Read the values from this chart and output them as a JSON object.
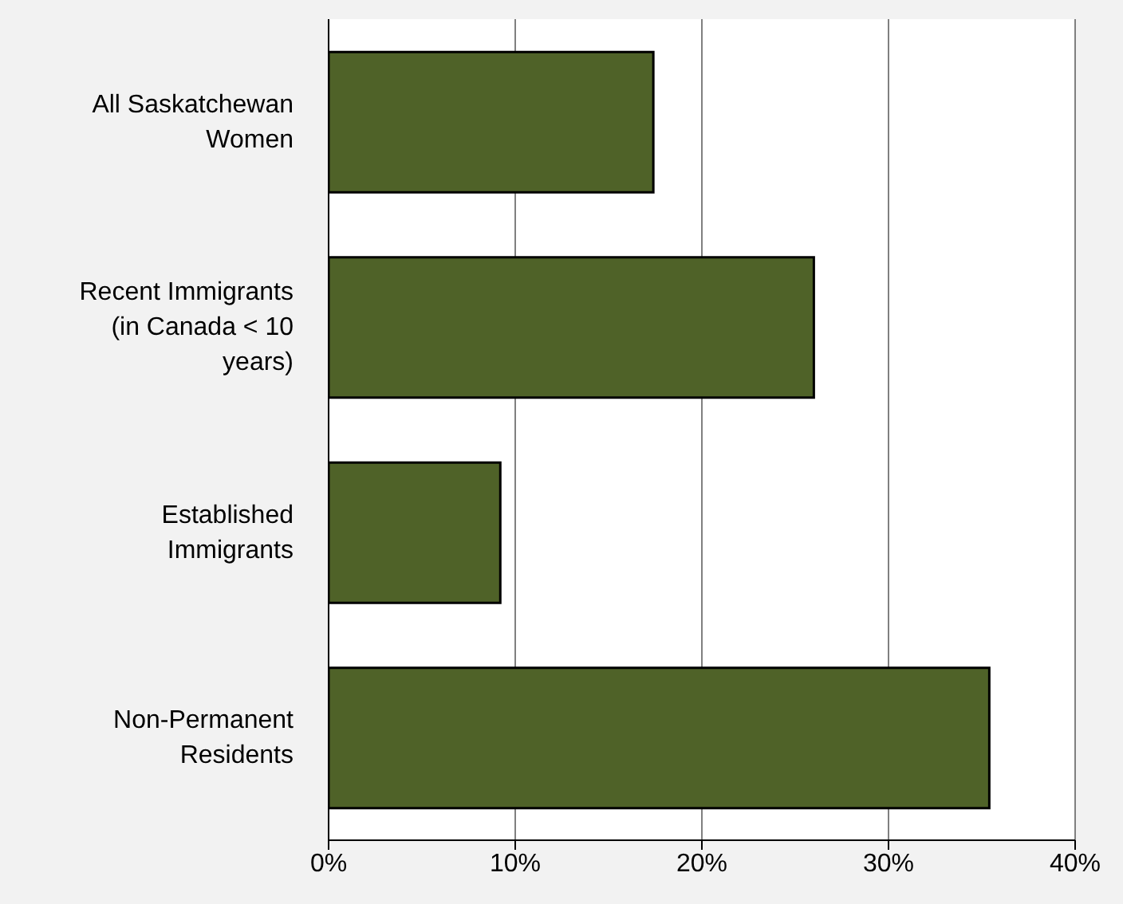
{
  "chart_data": {
    "type": "bar",
    "orientation": "horizontal",
    "categories": [
      "All Saskatchewan Women",
      "Recent Immigrants (in Canada < 10 years)",
      "Established Immigrants",
      "Non-Permanent Residents"
    ],
    "values": [
      17.4,
      26.0,
      9.2,
      35.4
    ],
    "color": "#4f6228",
    "xlim": [
      0,
      40
    ],
    "xticks": [
      {
        "value": 0,
        "label": "0%"
      },
      {
        "value": 10,
        "label": "10%"
      },
      {
        "value": 20,
        "label": "20%"
      },
      {
        "value": 30,
        "label": "30%"
      },
      {
        "value": 40,
        "label": "40%"
      }
    ],
    "grid": "x",
    "legend": false
  }
}
